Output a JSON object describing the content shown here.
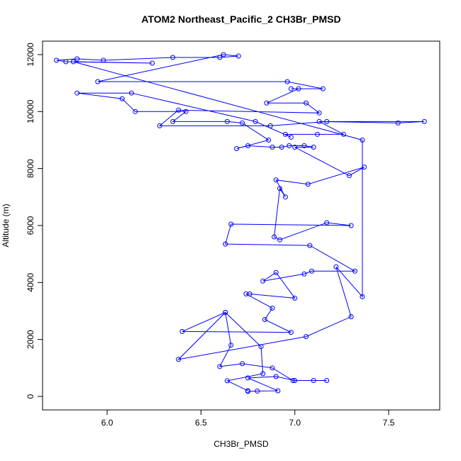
{
  "chart_data": {
    "type": "line",
    "title": "ATOM2 Northeast_Pacific_2 CH3Br_PMSD",
    "x_label": "CH3Br_PMSD",
    "y_label": "Altitude (m)",
    "color": "blue",
    "x": [
      6.75,
      6.8,
      6.91,
      6.75,
      6.9,
      7.0,
      7.1,
      7.17,
      6.99,
      6.88,
      6.72,
      6.6,
      6.66,
      6.63,
      6.4,
      6.98,
      6.84,
      6.88,
      6.74,
      6.76,
      7.0,
      6.9,
      6.83,
      7.05,
      7.09,
      7.32,
      7.08,
      6.63,
      6.66,
      7.3,
      7.17,
      6.92,
      6.89,
      6.92,
      6.95,
      6.9,
      7.07,
      7.37,
      7.29,
      7.0,
      7.1,
      7.05,
      6.97,
      6.93,
      6.88,
      6.75,
      6.69,
      6.86,
      6.72,
      6.64,
      6.35,
      6.42,
      6.15,
      6.08,
      5.84,
      6.13,
      6.79,
      6.98,
      6.95,
      7.12,
      7.26,
      7.13,
      7.55,
      7.69,
      7.17,
      6.87,
      6.28,
      6.38,
      7.13,
      7.06,
      6.85,
      7.02,
      6.98,
      7.15,
      6.96,
      5.95,
      6.62,
      6.7,
      6.6,
      6.35,
      5.98,
      5.84,
      5.73,
      5.78,
      6.24,
      5.82,
      7.36,
      7.36,
      7.22,
      7.3,
      7.06,
      6.38,
      6.63,
      6.82,
      6.83,
      6.64,
      6.75
    ],
    "values": [
      180,
      190,
      200,
      650,
      700,
      560,
      560,
      560,
      560,
      1000,
      1150,
      1050,
      1800,
      2950,
      2280,
      2250,
      2700,
      3100,
      3600,
      3600,
      3450,
      4350,
      4050,
      4300,
      4400,
      4400,
      5300,
      5350,
      6050,
      6000,
      6100,
      5500,
      5600,
      7300,
      7000,
      7600,
      7450,
      8050,
      7750,
      8750,
      8750,
      8800,
      8800,
      8750,
      8750,
      8800,
      8700,
      9000,
      9600,
      9650,
      9650,
      10000,
      10000,
      10450,
      10650,
      10650,
      9650,
      9100,
      9200,
      9200,
      9200,
      9650,
      9600,
      9650,
      9650,
      9500,
      9500,
      10050,
      9950,
      10300,
      10300,
      10800,
      10800,
      10800,
      11050,
      11050,
      12000,
      11950,
      11900,
      11900,
      11800,
      11850,
      11800,
      11750,
      11700,
      11750,
      9000,
      3500,
      4550,
      2800,
      2100,
      1300,
      2950,
      1750,
      800,
      550,
      200
    ],
    "xlim": [
      5.656,
      7.772
    ],
    "ylim": [
      -473,
      12472
    ],
    "xticks": [
      {
        "value": 6,
        "label": "6.0"
      },
      6.5,
      {
        "value": 7,
        "label": "7.0"
      },
      7.5
    ],
    "yticks": [
      0,
      2000,
      4000,
      6000,
      8000,
      10000,
      12000
    ]
  }
}
